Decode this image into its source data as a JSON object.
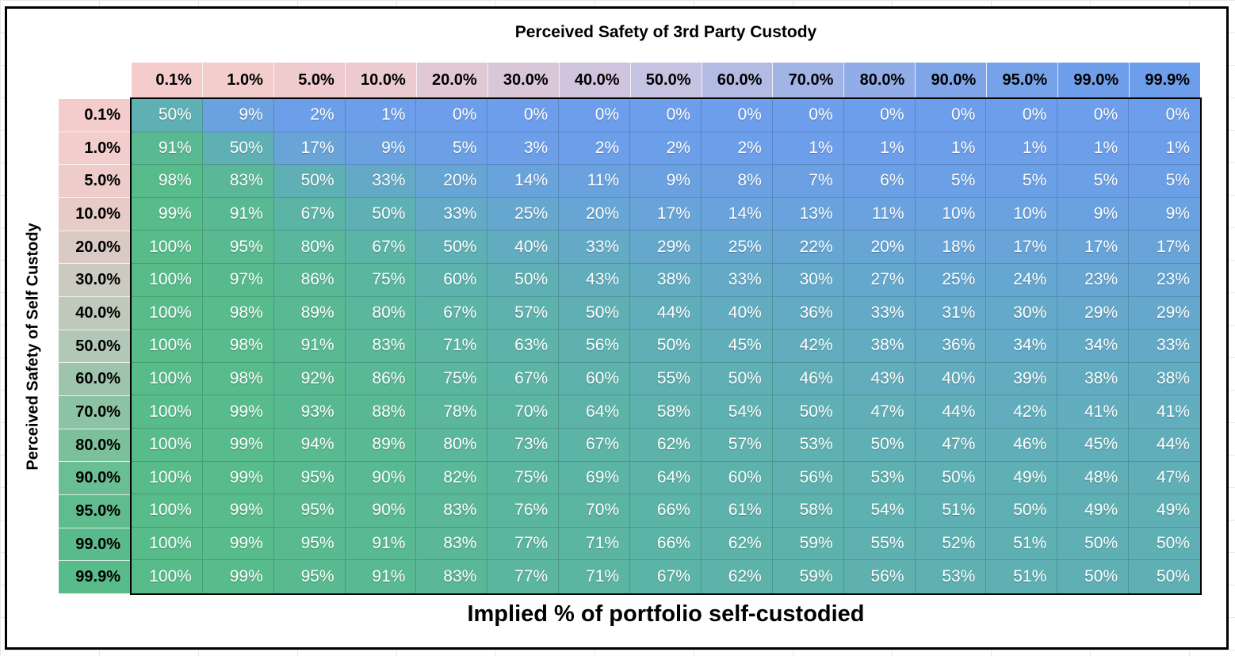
{
  "titles": {
    "top": "Perceived Safety of 3rd Party Custody",
    "left": "Perceived Safety of Self Custody",
    "bottom": "Implied % of portfolio self-custodied"
  },
  "chart_data": {
    "type": "heatmap",
    "title": "Implied % of portfolio self-custodied",
    "x_axis_label": "Perceived Safety of 3rd Party Custody",
    "y_axis_label": "Perceived Safety of Self Custody",
    "x_tick_labels": [
      "0.1%",
      "1.0%",
      "5.0%",
      "10.0%",
      "20.0%",
      "30.0%",
      "40.0%",
      "50.0%",
      "60.0%",
      "70.0%",
      "80.0%",
      "90.0%",
      "95.0%",
      "99.0%",
      "99.9%"
    ],
    "y_tick_labels": [
      "0.1%",
      "1.0%",
      "5.0%",
      "10.0%",
      "20.0%",
      "30.0%",
      "40.0%",
      "50.0%",
      "60.0%",
      "70.0%",
      "80.0%",
      "90.0%",
      "95.0%",
      "99.0%",
      "99.9%"
    ],
    "cell_value_suffix": "%",
    "values_percent": [
      [
        50,
        9,
        2,
        1,
        0,
        0,
        0,
        0,
        0,
        0,
        0,
        0,
        0,
        0,
        0
      ],
      [
        91,
        50,
        17,
        9,
        5,
        3,
        2,
        2,
        2,
        1,
        1,
        1,
        1,
        1,
        1
      ],
      [
        98,
        83,
        50,
        33,
        20,
        14,
        11,
        9,
        8,
        7,
        6,
        5,
        5,
        5,
        5
      ],
      [
        99,
        91,
        67,
        50,
        33,
        25,
        20,
        17,
        14,
        13,
        11,
        10,
        10,
        9,
        9
      ],
      [
        100,
        95,
        80,
        67,
        50,
        40,
        33,
        29,
        25,
        22,
        20,
        18,
        17,
        17,
        17
      ],
      [
        100,
        97,
        86,
        75,
        60,
        50,
        43,
        38,
        33,
        30,
        27,
        25,
        24,
        23,
        23
      ],
      [
        100,
        98,
        89,
        80,
        67,
        57,
        50,
        44,
        40,
        36,
        33,
        31,
        30,
        29,
        29
      ],
      [
        100,
        98,
        91,
        83,
        71,
        63,
        56,
        50,
        45,
        42,
        38,
        36,
        34,
        34,
        33
      ],
      [
        100,
        98,
        92,
        86,
        75,
        67,
        60,
        55,
        50,
        46,
        43,
        40,
        39,
        38,
        38
      ],
      [
        100,
        99,
        93,
        88,
        78,
        70,
        64,
        58,
        54,
        50,
        47,
        44,
        42,
        41,
        41
      ],
      [
        100,
        99,
        94,
        89,
        80,
        73,
        67,
        62,
        57,
        53,
        50,
        47,
        46,
        45,
        44
      ],
      [
        100,
        99,
        95,
        90,
        82,
        75,
        69,
        64,
        60,
        56,
        53,
        50,
        49,
        48,
        47
      ],
      [
        100,
        99,
        95,
        90,
        83,
        76,
        70,
        66,
        61,
        58,
        54,
        51,
        50,
        49,
        49
      ],
      [
        100,
        99,
        95,
        91,
        83,
        77,
        71,
        66,
        62,
        59,
        55,
        52,
        51,
        50,
        50
      ],
      [
        100,
        99,
        95,
        91,
        83,
        77,
        71,
        67,
        62,
        59,
        56,
        53,
        51,
        50,
        50
      ]
    ],
    "color_scale": {
      "cell_low_blue": "#6d9eeb",
      "cell_mid_teal": "#5fb0b4",
      "cell_high_green": "#57bb8a",
      "col_header_low_pink": "#f4cccc",
      "col_header_mid_lavender": "#c6c2e1",
      "col_header_high_blue": "#6d9eeb",
      "row_header_low_pink": "#f4cccc",
      "row_header_mid_sage": "#b0c8b5",
      "row_header_high_green": "#57bb8a",
      "cell_text": "#ffffff",
      "header_text": "#000000",
      "frame_border": "#000000"
    },
    "legend_position": "none",
    "grid_on": true
  }
}
